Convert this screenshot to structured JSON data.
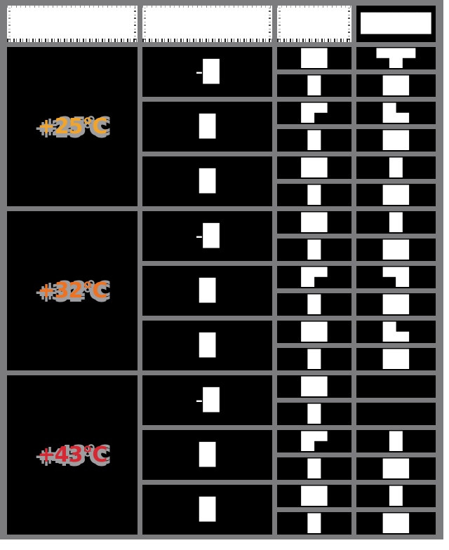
{
  "page": {
    "background": "#ffffff"
  },
  "table": {
    "grid_color": "#7c7c7f",
    "cell_background": "#000000",
    "shadow_color": "#9e9ea0",
    "header": {
      "col1_label": "",
      "col2_label": "",
      "col3_label": "",
      "col4_blob": "█████"
    },
    "blocks": [
      {
        "temperature": "+25°C",
        "color": "#f0a42c",
        "col2": [
          "-█",
          "█",
          "█"
        ],
        "col3": [
          "██",
          "█",
          "█▀",
          "█",
          "██",
          "█"
        ],
        "col4": [
          "▀█▀",
          "██",
          "█▄",
          "██",
          "█",
          "██"
        ]
      },
      {
        "temperature": "+32°C",
        "color": "#ed7222",
        "col2": [
          "-█",
          "█",
          "█"
        ],
        "col3": [
          "██",
          "█",
          "█▀",
          "█",
          "██",
          "█"
        ],
        "col4": [
          "█",
          "██",
          "▀█",
          "██",
          "█▄",
          "██"
        ]
      },
      {
        "temperature": "+43°C",
        "color": "#d52832",
        "col2": [
          "-█",
          "█",
          "█"
        ],
        "col3": [
          "██",
          "█",
          "█▀",
          "█",
          "██",
          "█"
        ],
        "col4": [
          "",
          "",
          "█",
          "██",
          "█",
          "██"
        ]
      }
    ]
  }
}
